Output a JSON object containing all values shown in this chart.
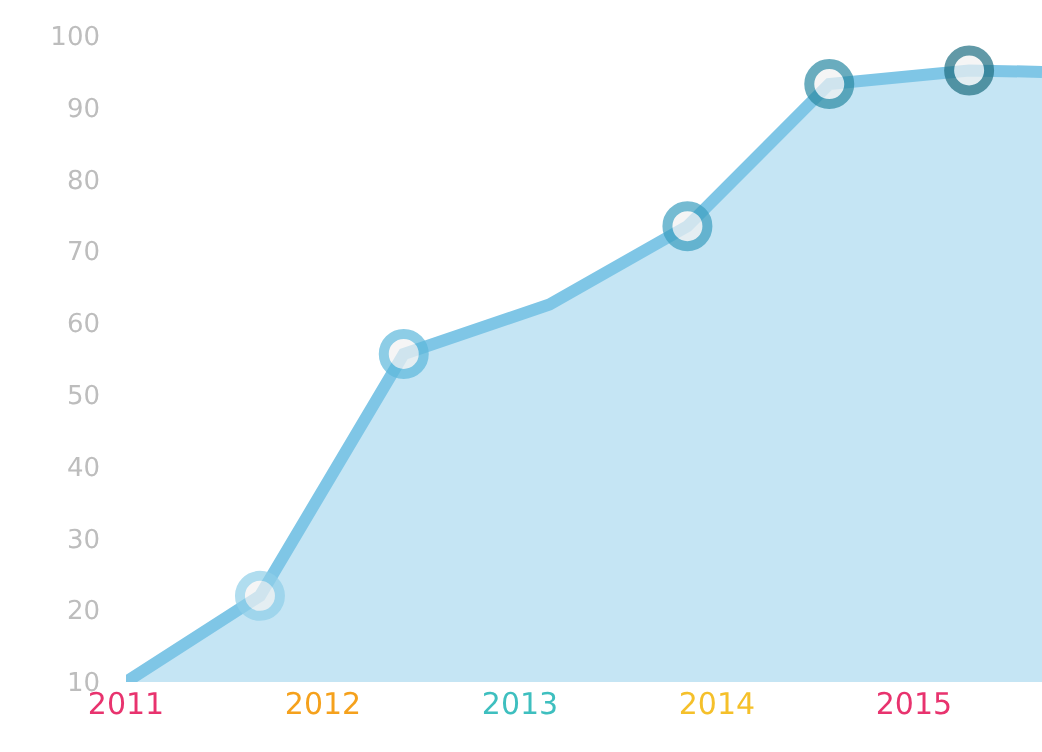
{
  "chart_data": {
    "type": "area",
    "xlim": [
      2011,
      2015.65
    ],
    "ylim": [
      10,
      100
    ],
    "xticks": [
      2011,
      2012,
      2013,
      2014,
      2015
    ],
    "yticks": [
      10,
      20,
      30,
      40,
      50,
      60,
      70,
      80,
      90,
      100
    ],
    "grid": false,
    "series": [
      {
        "color": "#7fc6e6",
        "marker": "circle",
        "colors": [
          null,
          "#8fcfe9",
          "#5db8dc",
          null,
          "#3c9fc0",
          "#2a8aa3",
          "#1f6f82",
          null
        ],
        "x": [
          2011,
          2011.68,
          2012.41,
          2013.15,
          2013.85,
          2014.57,
          2015.28,
          2015.65
        ],
        "values": [
          10,
          22,
          55.7,
          62.6,
          73.5,
          93.3,
          95.2,
          95
        ]
      }
    ]
  }
}
